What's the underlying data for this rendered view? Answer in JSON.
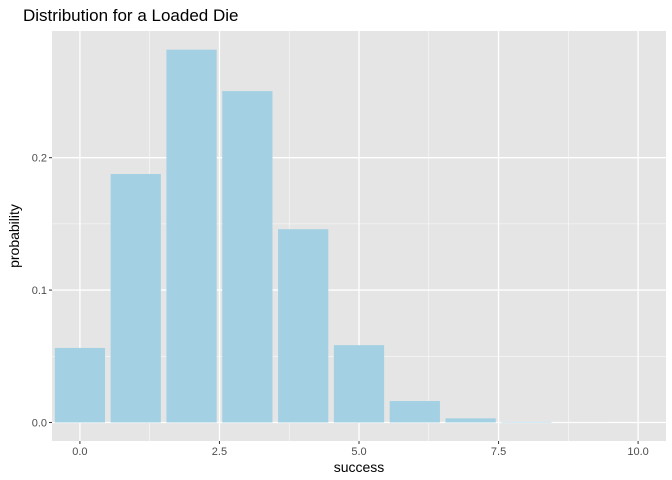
{
  "chart_data": {
    "type": "bar",
    "title": "Distribution for a Loaded Die",
    "xlabel": "success",
    "ylabel": "probability",
    "x": [
      0,
      1,
      2,
      3,
      4,
      5,
      6,
      7,
      8,
      9,
      10
    ],
    "values": [
      0.0563,
      0.1877,
      0.2816,
      0.2503,
      0.146,
      0.0584,
      0.0162,
      0.0031,
      0.0004,
      3e-05,
      1e-06
    ],
    "xlim": [
      -0.5,
      10.5
    ],
    "ylim": [
      -0.014,
      0.2957
    ],
    "x_ticks": [
      0,
      2.5,
      5,
      7.5,
      10
    ],
    "x_tick_labels": [
      "0.0",
      "2.5",
      "5.0",
      "7.5",
      "10.0"
    ],
    "y_ticks": [
      0,
      0.1,
      0.2
    ],
    "y_tick_labels": [
      "0.0",
      "0.1",
      "0.2"
    ],
    "grid": true,
    "legend": "none",
    "colors": {
      "bar_fill": "#a3d1e3",
      "panel_background": "#e5e5e5",
      "gridline": "#ffffff"
    }
  }
}
